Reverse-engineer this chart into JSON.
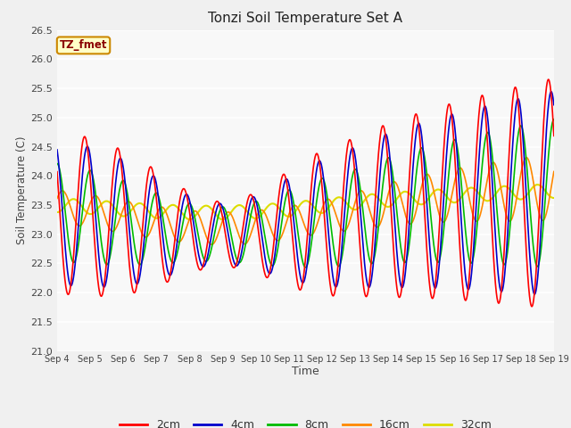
{
  "title": "Tonzi Soil Temperature Set A",
  "xlabel": "Time",
  "ylabel": "Soil Temperature (C)",
  "ylim": [
    21.0,
    26.5
  ],
  "xlim": [
    0,
    360
  ],
  "colors": {
    "2cm": "#FF0000",
    "4cm": "#0000CC",
    "8cm": "#00BB00",
    "16cm": "#FF8800",
    "32cm": "#DDDD00"
  },
  "legend_label": "TZ_fmet",
  "tick_labels": [
    "Sep 4",
    "Sep 5",
    "Sep 6",
    "Sep 7",
    "Sep 8",
    "Sep 9",
    "Sep 10",
    "Sep 11",
    "Sep 12",
    "Sep 13",
    "Sep 14",
    "Sep 15",
    "Sep 16",
    "Sep 17",
    "Sep 18",
    "Sep 19"
  ]
}
